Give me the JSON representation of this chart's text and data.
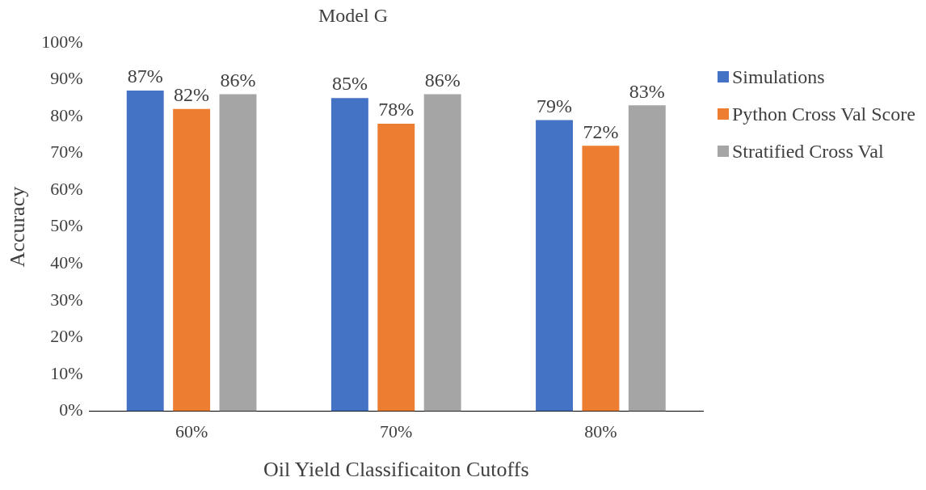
{
  "chart_data": {
    "type": "bar",
    "title": "Model G",
    "xlabel": "Oil Yield Classificaiton Cutoffs",
    "ylabel": "Accuracy",
    "categories": [
      "60%",
      "70%",
      "80%"
    ],
    "series": [
      {
        "name": "Simulations",
        "color": "#4472c4",
        "values": [
          87,
          85,
          79
        ],
        "value_labels": [
          "87%",
          "85%",
          "79%"
        ]
      },
      {
        "name": "Python Cross Val Score",
        "color": "#ed7d31",
        "values": [
          82,
          78,
          72
        ],
        "value_labels": [
          "82%",
          "78%",
          "72%"
        ]
      },
      {
        "name": "Stratified Cross Val",
        "color": "#a5a5a5",
        "values": [
          86,
          86,
          83
        ],
        "value_labels": [
          "86%",
          "86%",
          "83%"
        ]
      }
    ],
    "ylim": [
      0,
      100
    ],
    "yticks": [
      {
        "value": 0,
        "label": "0%"
      },
      {
        "value": 10,
        "label": "10%"
      },
      {
        "value": 20,
        "label": "20%"
      },
      {
        "value": 30,
        "label": "30%"
      },
      {
        "value": 40,
        "label": "40%"
      },
      {
        "value": 50,
        "label": "50%"
      },
      {
        "value": 60,
        "label": "60%"
      },
      {
        "value": 70,
        "label": "70%"
      },
      {
        "value": 80,
        "label": "80%"
      },
      {
        "value": 90,
        "label": "90%"
      },
      {
        "value": 100,
        "label": "100%"
      }
    ],
    "grid": false,
    "legend": "right"
  }
}
